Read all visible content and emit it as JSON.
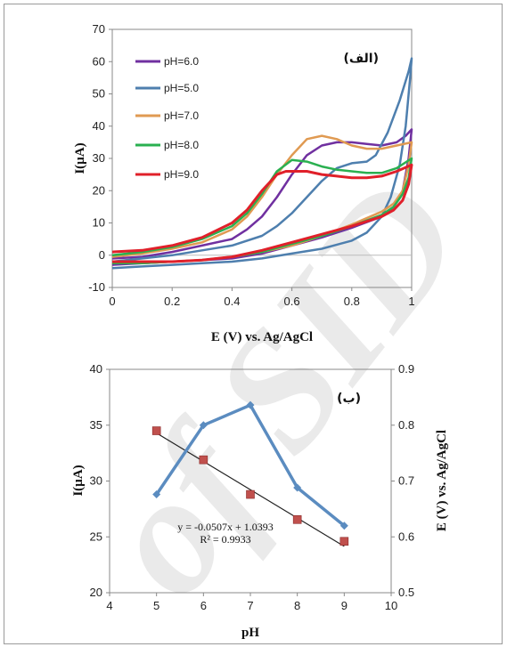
{
  "watermark": "of SID",
  "chart_data": [
    {
      "type": "line",
      "panel_label": "(الف)",
      "xlabel": "E (V) vs. Ag/AgCl",
      "ylabel": "I(µA)",
      "xlim": [
        0,
        1
      ],
      "ylim": [
        -10,
        70
      ],
      "xticks": [
        "0",
        "0.2",
        "0.4",
        "0.6",
        "0.8",
        "1"
      ],
      "yticks": [
        "-10",
        "0",
        "10",
        "20",
        "30",
        "40",
        "50",
        "60",
        "70"
      ],
      "legend_position": "top-left",
      "series": [
        {
          "name": "pH=6.0",
          "color": "#7030a0",
          "forward": [
            [
              0,
              -1
            ],
            [
              0.1,
              -0.5
            ],
            [
              0.2,
              1
            ],
            [
              0.3,
              3
            ],
            [
              0.4,
              5
            ],
            [
              0.45,
              8
            ],
            [
              0.5,
              12
            ],
            [
              0.55,
              18
            ],
            [
              0.6,
              25
            ],
            [
              0.65,
              31
            ],
            [
              0.7,
              34
            ],
            [
              0.75,
              35
            ],
            [
              0.8,
              35
            ],
            [
              0.85,
              34.5
            ],
            [
              0.9,
              34
            ],
            [
              0.95,
              35
            ],
            [
              0.98,
              37
            ],
            [
              1,
              39
            ]
          ],
          "reverse": [
            [
              1,
              39
            ],
            [
              0.99,
              30
            ],
            [
              0.97,
              20
            ],
            [
              0.94,
              15
            ],
            [
              0.9,
              12
            ],
            [
              0.8,
              8.5
            ],
            [
              0.7,
              5.5
            ],
            [
              0.6,
              3
            ],
            [
              0.5,
              0.5
            ],
            [
              0.4,
              -1
            ],
            [
              0.3,
              -1.5
            ],
            [
              0.2,
              -2
            ],
            [
              0.1,
              -2.5
            ],
            [
              0,
              -3
            ]
          ]
        },
        {
          "name": "pH=5.0",
          "color": "#4e7fae",
          "forward": [
            [
              0,
              -2
            ],
            [
              0.1,
              -1
            ],
            [
              0.2,
              0
            ],
            [
              0.3,
              1.5
            ],
            [
              0.4,
              3
            ],
            [
              0.5,
              6
            ],
            [
              0.55,
              9
            ],
            [
              0.6,
              13
            ],
            [
              0.65,
              18
            ],
            [
              0.7,
              23
            ],
            [
              0.75,
              27
            ],
            [
              0.8,
              28.5
            ],
            [
              0.85,
              29
            ],
            [
              0.88,
              31
            ],
            [
              0.92,
              38
            ],
            [
              0.96,
              48
            ],
            [
              0.99,
              57
            ],
            [
              1,
              61
            ]
          ],
          "reverse": [
            [
              1,
              61
            ],
            [
              0.995,
              55
            ],
            [
              0.98,
              40
            ],
            [
              0.96,
              28
            ],
            [
              0.93,
              18
            ],
            [
              0.9,
              12
            ],
            [
              0.85,
              7
            ],
            [
              0.8,
              4.5
            ],
            [
              0.7,
              2
            ],
            [
              0.6,
              0.5
            ],
            [
              0.5,
              -1
            ],
            [
              0.4,
              -2
            ],
            [
              0.3,
              -2.5
            ],
            [
              0.2,
              -3
            ],
            [
              0.1,
              -3.5
            ],
            [
              0,
              -4
            ]
          ]
        },
        {
          "name": "pH=7.0",
          "color": "#e09a52",
          "forward": [
            [
              0,
              -0.5
            ],
            [
              0.1,
              0.5
            ],
            [
              0.2,
              2
            ],
            [
              0.3,
              4
            ],
            [
              0.4,
              8
            ],
            [
              0.45,
              12
            ],
            [
              0.5,
              18
            ],
            [
              0.55,
              25
            ],
            [
              0.6,
              31
            ],
            [
              0.65,
              36
            ],
            [
              0.7,
              37
            ],
            [
              0.75,
              36
            ],
            [
              0.8,
              34
            ],
            [
              0.85,
              33
            ],
            [
              0.9,
              33
            ],
            [
              0.95,
              34
            ],
            [
              1,
              35
            ]
          ],
          "reverse": [
            [
              1,
              35
            ],
            [
              0.99,
              28
            ],
            [
              0.97,
              20
            ],
            [
              0.94,
              16
            ],
            [
              0.9,
              13.5
            ],
            [
              0.8,
              9.5
            ],
            [
              0.7,
              6
            ],
            [
              0.6,
              3
            ],
            [
              0.5,
              1
            ],
            [
              0.4,
              -0.5
            ],
            [
              0.3,
              -1.5
            ],
            [
              0.2,
              -2
            ],
            [
              0.1,
              -2.5
            ],
            [
              0,
              -2.5
            ]
          ]
        },
        {
          "name": "pH=8.0",
          "color": "#2ab050",
          "forward": [
            [
              0,
              0
            ],
            [
              0.1,
              1
            ],
            [
              0.2,
              2.5
            ],
            [
              0.3,
              5
            ],
            [
              0.4,
              9
            ],
            [
              0.45,
              13
            ],
            [
              0.5,
              19
            ],
            [
              0.55,
              26
            ],
            [
              0.6,
              29.5
            ],
            [
              0.65,
              29
            ],
            [
              0.7,
              27.5
            ],
            [
              0.75,
              26.5
            ],
            [
              0.8,
              26
            ],
            [
              0.85,
              25.5
            ],
            [
              0.9,
              25.5
            ],
            [
              0.95,
              27
            ],
            [
              1,
              30
            ]
          ],
          "reverse": [
            [
              1,
              30
            ],
            [
              0.99,
              24
            ],
            [
              0.97,
              19
            ],
            [
              0.94,
              15
            ],
            [
              0.9,
              12.5
            ],
            [
              0.8,
              9
            ],
            [
              0.7,
              6
            ],
            [
              0.6,
              3.5
            ],
            [
              0.5,
              1
            ],
            [
              0.4,
              -0.5
            ],
            [
              0.3,
              -1.5
            ],
            [
              0.2,
              -2
            ],
            [
              0.1,
              -2.5
            ],
            [
              0,
              -2.5
            ]
          ]
        },
        {
          "name": "pH=9.0",
          "color": "#e0202a",
          "forward": [
            [
              0,
              1
            ],
            [
              0.1,
              1.5
            ],
            [
              0.2,
              3
            ],
            [
              0.3,
              5.5
            ],
            [
              0.4,
              10
            ],
            [
              0.45,
              14
            ],
            [
              0.5,
              20
            ],
            [
              0.55,
              25
            ],
            [
              0.58,
              26
            ],
            [
              0.65,
              26
            ],
            [
              0.7,
              25
            ],
            [
              0.75,
              24.5
            ],
            [
              0.8,
              24
            ],
            [
              0.85,
              24
            ],
            [
              0.9,
              24.5
            ],
            [
              0.95,
              26
            ],
            [
              1,
              28
            ]
          ],
          "reverse": [
            [
              1,
              28
            ],
            [
              0.99,
              22
            ],
            [
              0.97,
              17
            ],
            [
              0.94,
              14
            ],
            [
              0.9,
              12
            ],
            [
              0.8,
              9
            ],
            [
              0.7,
              6.5
            ],
            [
              0.6,
              4
            ],
            [
              0.5,
              1.5
            ],
            [
              0.4,
              -0.5
            ],
            [
              0.3,
              -1.5
            ],
            [
              0.2,
              -2
            ],
            [
              0.1,
              -2
            ],
            [
              0,
              -2
            ]
          ]
        }
      ]
    },
    {
      "type": "line",
      "panel_label": "(ب)",
      "xlabel": "pH",
      "ylabel": "I(µA)",
      "ylabel_right": "E (V) vs. Ag/AgCl",
      "xlim": [
        4,
        10
      ],
      "ylim": [
        20,
        40
      ],
      "ylim_right": [
        0.5,
        0.9
      ],
      "xticks": [
        "4",
        "5",
        "6",
        "7",
        "8",
        "9",
        "10"
      ],
      "yticks": [
        "20",
        "25",
        "30",
        "35",
        "40"
      ],
      "yticks_right": [
        "0.5",
        "0.6",
        "0.7",
        "0.8",
        "0.9"
      ],
      "current_series": {
        "color": "#5b8cc0",
        "x": [
          5,
          6,
          7,
          8,
          9
        ],
        "y": [
          28.8,
          35.0,
          36.8,
          29.4,
          26.0
        ]
      },
      "potential_series": {
        "color": "#c0504d",
        "x": [
          5,
          6,
          7,
          8,
          9
        ],
        "y": [
          0.79,
          0.738,
          0.676,
          0.631,
          0.592
        ]
      },
      "trendline": {
        "color": "#222222",
        "slope": -0.0507,
        "intercept": 1.0393,
        "x_range": [
          5,
          9
        ]
      },
      "equation": "y = -0.0507x + 1.0393",
      "r_squared": "R² = 0.9933"
    }
  ]
}
